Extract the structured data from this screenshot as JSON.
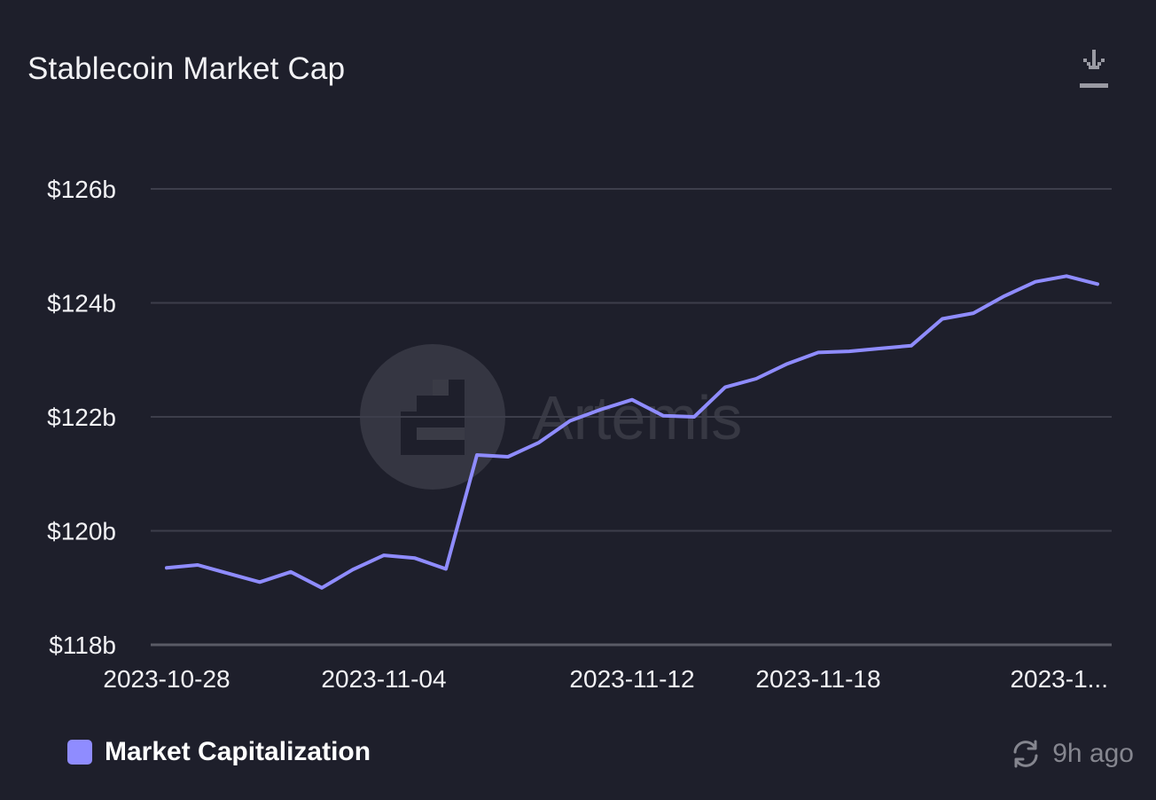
{
  "header": {
    "title": "Stablecoin Market Cap"
  },
  "watermark": {
    "text": "Artemis"
  },
  "icons": {
    "download": "download-icon",
    "refresh": "refresh-icon",
    "logo": "artemis-logo-icon"
  },
  "colors": {
    "background": "#1e1f2b",
    "line": "#8f8cff",
    "grid": "#3d3e4b",
    "axis_text": "#f2f2f5",
    "muted": "#85868f"
  },
  "footer": {
    "legend_label": "Market Capitalization",
    "updated": "9h ago"
  },
  "chart_data": {
    "type": "line",
    "title": "Stablecoin Market Cap",
    "xlabel": "",
    "ylabel": "",
    "ylim": [
      118,
      126
    ],
    "y_ticks": [
      {
        "value": 126,
        "label": "$126b"
      },
      {
        "value": 124,
        "label": "$124b"
      },
      {
        "value": 122,
        "label": "$122b"
      },
      {
        "value": 120,
        "label": "$120b"
      },
      {
        "value": 118,
        "label": "$118b"
      }
    ],
    "x_ticks": [
      {
        "date": "2023-10-28",
        "label": "2023-10-28"
      },
      {
        "date": "2023-11-04",
        "label": "2023-11-04"
      },
      {
        "date": "2023-11-12",
        "label": "2023-11-12"
      },
      {
        "date": "2023-11-18",
        "label": "2023-11-18"
      },
      {
        "date": "2023-11-25",
        "label": "2023-1..."
      }
    ],
    "grid": true,
    "legend": "bottom-left",
    "series": [
      {
        "name": "Market Capitalization",
        "color": "#8f8cff",
        "points": [
          {
            "x": "2023-10-28",
            "y": 119.35
          },
          {
            "x": "2023-10-29",
            "y": 119.4
          },
          {
            "x": "2023-10-30",
            "y": 119.25
          },
          {
            "x": "2023-10-31",
            "y": 119.1
          },
          {
            "x": "2023-11-01",
            "y": 119.28
          },
          {
            "x": "2023-11-02",
            "y": 119.0
          },
          {
            "x": "2023-11-03",
            "y": 119.32
          },
          {
            "x": "2023-11-04",
            "y": 119.57
          },
          {
            "x": "2023-11-05",
            "y": 119.52
          },
          {
            "x": "2023-11-06",
            "y": 119.33
          },
          {
            "x": "2023-11-07",
            "y": 121.33
          },
          {
            "x": "2023-11-08",
            "y": 121.3
          },
          {
            "x": "2023-11-09",
            "y": 121.55
          },
          {
            "x": "2023-11-10",
            "y": 121.93
          },
          {
            "x": "2023-11-11",
            "y": 122.13
          },
          {
            "x": "2023-11-12",
            "y": 122.3
          },
          {
            "x": "2023-11-13",
            "y": 122.02
          },
          {
            "x": "2023-11-14",
            "y": 122.0
          },
          {
            "x": "2023-11-15",
            "y": 122.52
          },
          {
            "x": "2023-11-16",
            "y": 122.67
          },
          {
            "x": "2023-11-17",
            "y": 122.93
          },
          {
            "x": "2023-11-18",
            "y": 123.13
          },
          {
            "x": "2023-11-19",
            "y": 123.15
          },
          {
            "x": "2023-11-20",
            "y": 123.2
          },
          {
            "x": "2023-11-21",
            "y": 123.25
          },
          {
            "x": "2023-11-22",
            "y": 123.72
          },
          {
            "x": "2023-11-23",
            "y": 123.82
          },
          {
            "x": "2023-11-24",
            "y": 124.12
          },
          {
            "x": "2023-11-25",
            "y": 124.37
          },
          {
            "x": "2023-11-26",
            "y": 124.47
          },
          {
            "x": "2023-11-27",
            "y": 124.33
          }
        ]
      }
    ]
  }
}
